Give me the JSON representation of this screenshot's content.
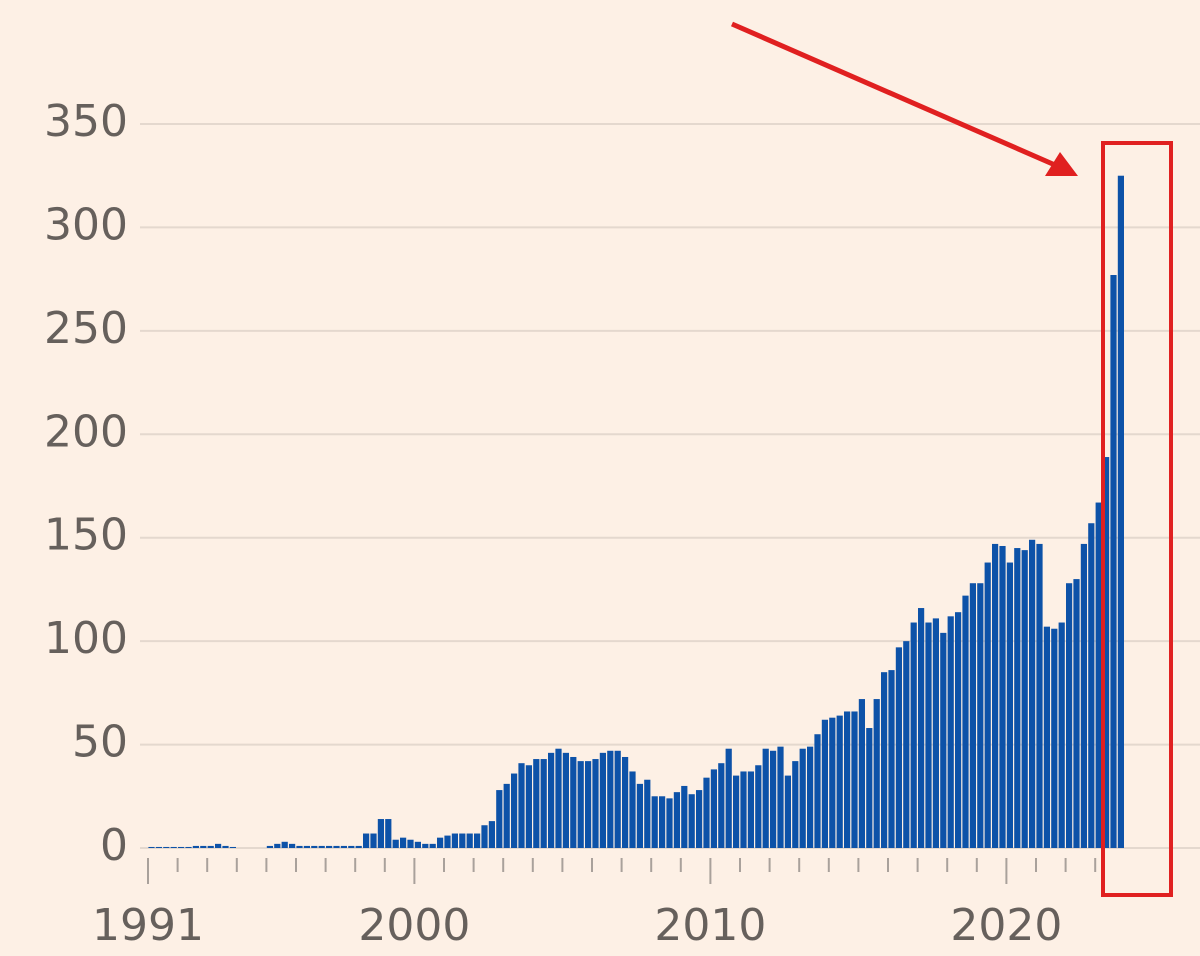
{
  "chart_data": {
    "type": "bar",
    "color": "#0d52a8",
    "categories": [
      "1991",
      null,
      null,
      null,
      null,
      null,
      null,
      null,
      null,
      null,
      null,
      null,
      null,
      null,
      null,
      null,
      null,
      null,
      null,
      null,
      null,
      null,
      null,
      null,
      null,
      null,
      null,
      null,
      null,
      null,
      null,
      null,
      null,
      null,
      null,
      null,
      "2000",
      null,
      null,
      null,
      null,
      null,
      null,
      null,
      null,
      null,
      null,
      null,
      null,
      null,
      null,
      null,
      null,
      null,
      null,
      null,
      null,
      null,
      null,
      null,
      null,
      null,
      null,
      null,
      null,
      null,
      null,
      null,
      null,
      null,
      null,
      null,
      null,
      null,
      null,
      null,
      "2010",
      null,
      null,
      null,
      null,
      null,
      null,
      null,
      null,
      null,
      null,
      null,
      null,
      null,
      null,
      null,
      null,
      null,
      null,
      null,
      null,
      null,
      null,
      null,
      null,
      null,
      null,
      null,
      null,
      null,
      null,
      null,
      null,
      null,
      null,
      null,
      null,
      null,
      null,
      null,
      "2020",
      null,
      null,
      null,
      null,
      null,
      null,
      null,
      null,
      null,
      null,
      null,
      null,
      null,
      null,
      null
    ],
    "values": [
      0.5,
      0.5,
      0.5,
      0.5,
      0.5,
      0.5,
      1,
      1,
      1,
      2,
      1,
      0.5,
      0,
      0,
      0,
      0,
      1,
      2,
      3,
      2,
      1,
      1,
      1,
      1,
      1,
      1,
      1,
      1,
      1,
      7,
      7,
      14,
      14,
      4,
      5,
      4,
      3,
      2,
      2,
      5,
      6,
      7,
      7,
      7,
      7,
      11,
      13,
      28,
      31,
      36,
      41,
      40,
      43,
      43,
      46,
      48,
      46,
      44,
      42,
      42,
      43,
      46,
      47,
      47,
      44,
      37,
      31,
      33,
      25,
      25,
      24,
      27,
      30,
      26,
      28,
      34,
      38,
      41,
      48,
      35,
      37,
      37,
      40,
      48,
      47,
      49,
      35,
      42,
      48,
      49,
      55,
      62,
      63,
      64,
      66,
      66,
      72,
      58,
      72,
      85,
      86,
      97,
      100,
      109,
      116,
      109,
      111,
      104,
      112,
      114,
      122,
      128,
      128,
      138,
      147,
      146,
      138,
      145,
      144,
      149,
      147,
      107,
      106,
      109,
      128,
      130,
      147,
      157,
      167,
      189,
      277,
      325
    ],
    "ylim": [
      0,
      350
    ],
    "yticks": [
      0,
      50,
      100,
      150,
      200,
      250,
      300,
      350
    ],
    "grid": true
  }
}
